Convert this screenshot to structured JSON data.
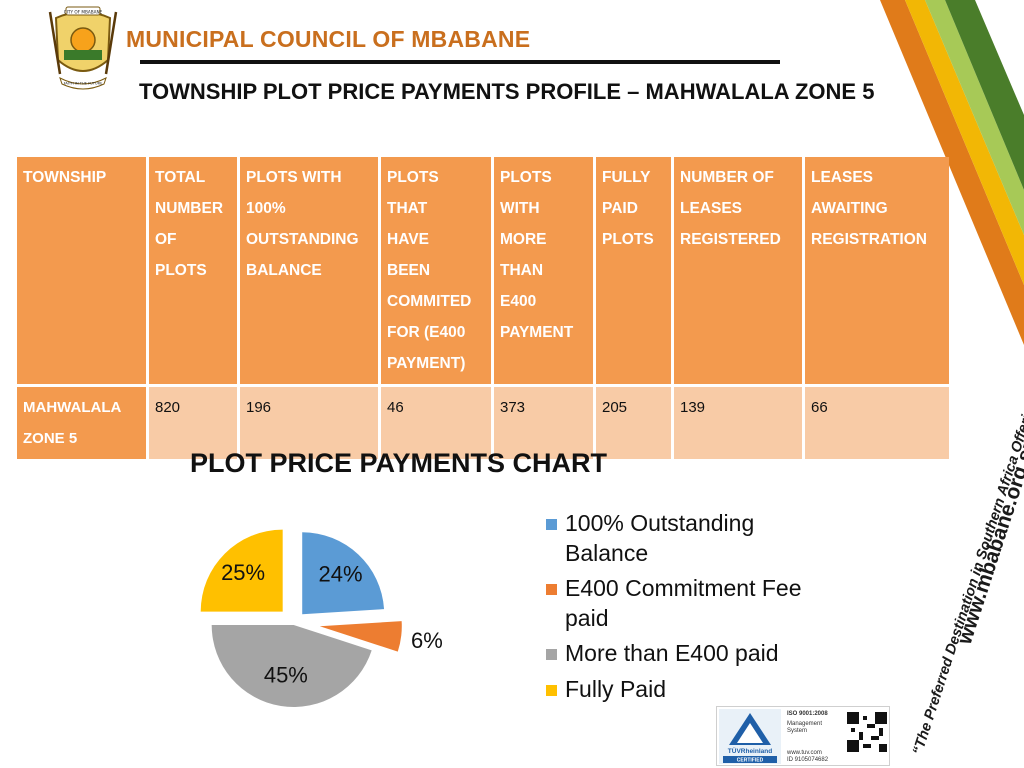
{
  "header": {
    "org_name": "MUNICIPAL COUNCIL OF MBABANE",
    "crest_top_text": "CITY OF MBABANE",
    "crest_motto": "FAITH IN THE FUTURE",
    "title": "TOWNSHIP PLOT PRICE PAYMENTS PROFILE – MAHWALALA ZONE 5"
  },
  "table": {
    "headers": [
      [
        "TOWNSHIP"
      ],
      [
        "TOTAL",
        "NUMBER",
        "OF",
        "PLOTS"
      ],
      [
        "PLOTS WITH",
        "100%",
        "OUTSTANDING",
        "BALANCE"
      ],
      [
        "PLOTS",
        "THAT",
        "HAVE",
        "BEEN",
        "COMMITED",
        "FOR (E400",
        "PAYMENT)"
      ],
      [
        "PLOTS",
        "WITH",
        "MORE",
        "THAN",
        "E400",
        "PAYMENT"
      ],
      [
        "FULLY",
        "PAID",
        "PLOTS"
      ],
      [
        "NUMBER OF",
        "LEASES",
        "REGISTERED"
      ],
      [
        "LEASES",
        "AWAITING",
        "REGISTRATION"
      ]
    ],
    "row": {
      "township": [
        "MAHWALALA",
        "ZONE 5"
      ],
      "values": [
        "820",
        "196",
        "46",
        "373",
        "205",
        "139",
        "66"
      ]
    }
  },
  "chart_data": {
    "type": "pie",
    "title": "PLOT PRICE PAYMENTS CHART",
    "legend_position": "right",
    "slices": [
      {
        "label": "100% Outstanding Balance",
        "value": 24,
        "display": "24%",
        "color": "#5b9bd5"
      },
      {
        "label": "E400 Commitment Fee paid",
        "value": 6,
        "display": "6%",
        "color": "#ed7d31"
      },
      {
        "label": "More than E400 paid",
        "value": 45,
        "display": "45%",
        "color": "#a5a5a5"
      },
      {
        "label": "Fully Paid",
        "value": 25,
        "display": "25%",
        "color": "#ffc000"
      }
    ]
  },
  "sidebar": {
    "tagline": "“The Preferred Destination in Southern Africa Offering Quality Life”",
    "website": "www.mbabane.org.sz"
  },
  "certification": {
    "brand": "TÜVRheinland",
    "status": "CERTIFIED",
    "standard": "ISO 9001:2008",
    "system_line1": "Management",
    "system_line2": "System",
    "site": "www.tuv.com",
    "id": "ID 9105074682"
  },
  "colors": {
    "header_orange": "#f39a4e",
    "cell_peach": "#f8cba6",
    "title_orange": "#c96f1e",
    "ribbon_green": "#4a7d2a",
    "ribbon_orange": "#e07b1a",
    "ribbon_yellow": "#f2b705"
  }
}
